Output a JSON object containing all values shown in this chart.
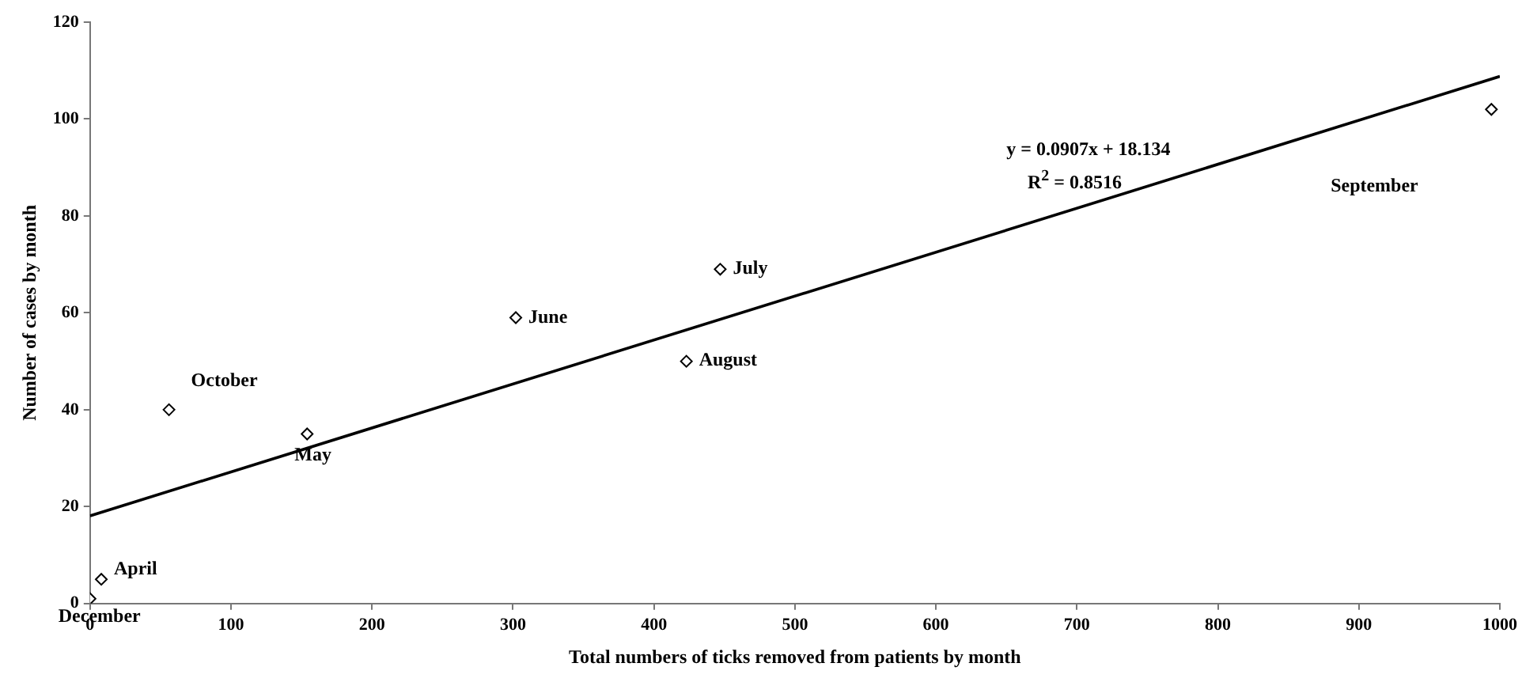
{
  "chart_data": {
    "type": "scatter",
    "xlabel": "Total numbers of ticks removed from patients by month",
    "ylabel": "Number of cases by month",
    "series": [
      {
        "color": "#000000",
        "x": [
          0,
          8,
          56,
          154,
          302,
          447,
          423,
          994
        ],
        "values": [
          1,
          5,
          40,
          35,
          59,
          69,
          50,
          102
        ]
      },
      {
        "type": "line",
        "color": "#000000",
        "marker": "none",
        "x": [
          0,
          1000
        ],
        "values": [
          18.1,
          108.8
        ]
      }
    ],
    "xlim": [
      0,
      1000
    ],
    "xticks": [
      0,
      100,
      200,
      300,
      400,
      500,
      600,
      700,
      800,
      900,
      1000
    ],
    "ylim": [
      0,
      120
    ],
    "yticks": [
      0,
      20,
      40,
      60,
      80,
      100,
      120
    ],
    "grid": false,
    "legend": false,
    "marker": "diamond",
    "annotations": [
      {
        "text": "December",
        "x": 0,
        "y": 1
      },
      {
        "text": "April",
        "x": 8,
        "y": 5
      },
      {
        "text": "October",
        "x": 56,
        "y": 40
      },
      {
        "text": "May",
        "x": 154,
        "y": 35
      },
      {
        "text": "June",
        "x": 302,
        "y": 59
      },
      {
        "text": "July",
        "x": 447,
        "y": 69
      },
      {
        "text": "August",
        "x": 423,
        "y": 50
      },
      "September",
      "y = 0.0907x + 18.134",
      "R$^{2}$ = 0.8516"
    ]
  }
}
